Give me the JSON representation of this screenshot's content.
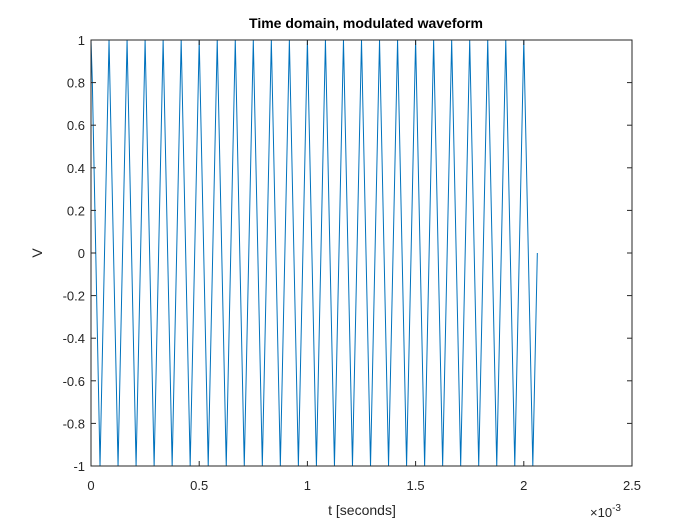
{
  "chart_data": {
    "type": "line",
    "title": "Time domain, modulated waveform",
    "xlabel": "t [seconds]",
    "ylabel": "V",
    "x_exponent_label": "×10",
    "x_exponent_power": "-3",
    "xlim": [
      0,
      0.0025
    ],
    "ylim": [
      -1,
      1
    ],
    "xticks": [
      0,
      0.0005,
      0.001,
      0.0015,
      0.002,
      0.0025
    ],
    "xtick_labels": [
      "0",
      "0.5",
      "1",
      "1.5",
      "2",
      "2.5"
    ],
    "yticks": [
      -1,
      -0.8,
      -0.6,
      -0.4,
      -0.2,
      0,
      0.2,
      0.4,
      0.6,
      0.8,
      1
    ],
    "ytick_labels": [
      "-1",
      "-0.8",
      "-0.6",
      "-0.4",
      "-0.2",
      "0",
      "0.2",
      "0.4",
      "0.6",
      "0.8",
      "1"
    ],
    "grid": false,
    "line_color": "#0072BD",
    "series": [
      {
        "x": [
          0,
          6.25e-06,
          4.17e-05,
          8.33e-05,
          0.000125,
          0.0001667,
          0.0002083,
          0.00025,
          0.0002917,
          0.0003333,
          0.000375,
          0.0004167,
          0.0004583,
          0.0005,
          0.0005417,
          0.0005833,
          0.000625,
          0.0006667,
          0.0007083,
          0.00075,
          0.0007917,
          0.0008333,
          0.000875,
          0.0009167,
          0.0009583,
          0.001,
          0.0010417,
          0.0010833,
          0.001125,
          0.0011667,
          0.0012083,
          0.00125,
          0.0012917,
          0.0013333,
          0.001375,
          0.0014167,
          0.0014583,
          0.0015,
          0.0015417,
          0.0015833,
          0.001625,
          0.0016667,
          0.0017083,
          0.00175,
          0.0017917,
          0.0018333,
          0.001875,
          0.0019167,
          0.0019583,
          0.002,
          0.0020417,
          0.0020625
        ],
        "y": [
          1,
          0.8,
          -1,
          1,
          -1,
          1,
          -1,
          1,
          -1,
          1,
          -1,
          1,
          -1,
          1,
          -1,
          1,
          -1,
          1,
          -1,
          1,
          -1,
          1,
          -1,
          1,
          -1,
          1,
          -1,
          1,
          -1,
          1,
          -1,
          1,
          -1,
          1,
          -1,
          1,
          -1,
          1,
          -1,
          1,
          -1,
          1,
          -1,
          1,
          -1,
          1,
          -1,
          1,
          -1,
          1,
          -1,
          0
        ]
      }
    ]
  }
}
